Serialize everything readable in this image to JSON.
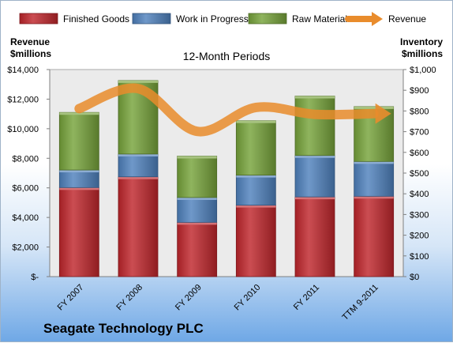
{
  "chart_data": {
    "type": "bar",
    "stacked": true,
    "title": "12-Month Periods",
    "company": "Seagate Technology PLC",
    "left_axis_label": [
      "Revenue",
      "$millions"
    ],
    "right_axis_label": [
      "Inventory",
      "$millions"
    ],
    "categories": [
      "FY 2007",
      "FY 2008",
      "FY 2009",
      "FY 2010",
      "FY 2011",
      "TTM 9-2011"
    ],
    "left_ylim": [
      0,
      14000
    ],
    "left_ticks": [
      "$-",
      "$2,000",
      "$4,000",
      "$6,000",
      "$8,000",
      "$10,000",
      "$12,000",
      "$14,000"
    ],
    "right_ylim": [
      0,
      1000
    ],
    "right_ticks": [
      "$0",
      "$100",
      "$200",
      "$300",
      "$400",
      "$500",
      "$600",
      "$700",
      "$800",
      "$900",
      "$1,000"
    ],
    "grid": false,
    "legend_position": "top",
    "bar_series": [
      {
        "name": "Finished Goods",
        "color": "#c0262c",
        "values": [
          430,
          482,
          262,
          345,
          385,
          388
        ]
      },
      {
        "name": "Work in Progress",
        "color": "#4f81bd",
        "values": [
          85,
          110,
          120,
          145,
          200,
          168
        ]
      },
      {
        "name": "Raw Materials",
        "color": "#77a33b",
        "values": [
          278,
          355,
          200,
          263,
          287,
          265
        ]
      }
    ],
    "line_series": {
      "name": "Revenue",
      "color": "#e98c2c",
      "values": [
        11360,
        12710,
        9820,
        11440,
        10970,
        11020
      ]
    }
  }
}
